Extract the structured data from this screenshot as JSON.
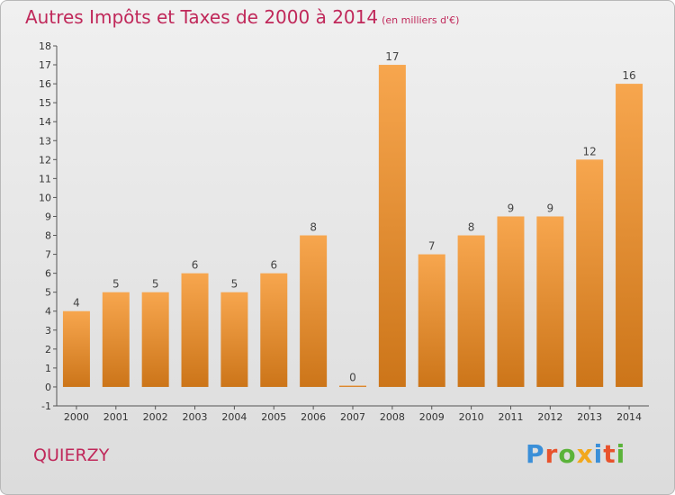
{
  "header": {
    "title": "Autres Impôts et Taxes de 2000 à 2014",
    "subtitle": "(en milliers d'€)"
  },
  "footer": {
    "commune": "QUIERZY",
    "brand": "Proxiti"
  },
  "colors": {
    "title": "#c0285a",
    "bar_top": "#f7a64e",
    "bar_bottom": "#cc7519",
    "brand_letters": [
      "#3a8fd8",
      "#e8522c",
      "#5bb33a",
      "#f2a81d",
      "#3a8fd8",
      "#e8522c",
      "#5bb33a"
    ]
  },
  "chart_data": {
    "type": "bar",
    "title": "Autres Impôts et Taxes de 2000 à 2014",
    "subtitle": "(en milliers d'€)",
    "categories": [
      "2000",
      "2001",
      "2002",
      "2003",
      "2004",
      "2005",
      "2006",
      "2007",
      "2008",
      "2009",
      "2010",
      "2011",
      "2012",
      "2013",
      "2014"
    ],
    "values": [
      4,
      5,
      5,
      6,
      5,
      6,
      8,
      0,
      17,
      7,
      8,
      9,
      9,
      12,
      16
    ],
    "ylim": [
      -1,
      18
    ],
    "yticks": [
      -1,
      0,
      1,
      2,
      3,
      4,
      5,
      6,
      7,
      8,
      9,
      10,
      11,
      12,
      13,
      14,
      15,
      16,
      17,
      18
    ],
    "grid": false,
    "legend": "none"
  }
}
